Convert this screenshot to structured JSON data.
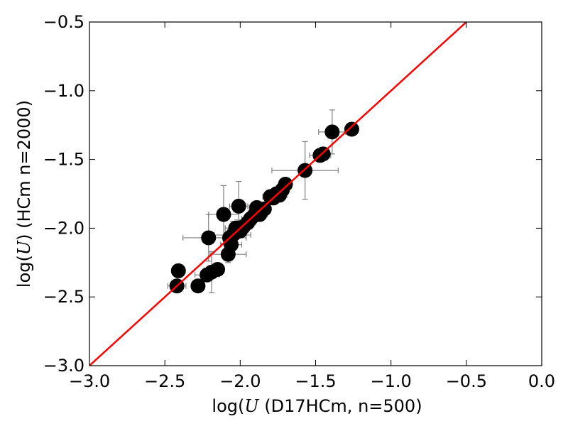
{
  "chart_data": {
    "type": "scatter",
    "title": "",
    "xlabel": "log(U (D17HCm, n=500)",
    "ylabel": "log(U) (HCm n=2000)",
    "xlabel_parts": {
      "prefix": "log(",
      "var": "U",
      "suffix": " (D17HCm, n=500)"
    },
    "ylabel_parts": {
      "prefix": "log(",
      "var": "U",
      "suffix": ") (HCm n=2000)"
    },
    "xlim": [
      -3.0,
      0.0
    ],
    "ylim": [
      -3.0,
      -0.5
    ],
    "xticks": [
      -3.0,
      -2.5,
      -2.0,
      -1.5,
      -1.0,
      -0.5,
      0.0
    ],
    "yticks": [
      -3.0,
      -2.5,
      -2.0,
      -1.5,
      -1.0,
      -0.5
    ],
    "xtick_labels": [
      "−3.0",
      "−2.5",
      "−2.0",
      "−1.5",
      "−1.0",
      "−0.5",
      "0.0"
    ],
    "ytick_labels": [
      "−3.0",
      "−2.5",
      "−2.0",
      "−1.5",
      "−1.0",
      "−0.5"
    ],
    "grid": false,
    "marker_color": "#000000",
    "errorbar_color": "#808080",
    "fit_line": {
      "x": [
        -3.0,
        -0.5
      ],
      "y": [
        -3.0,
        -0.5
      ],
      "color": "#ff0000"
    },
    "series": [
      {
        "points": [
          {
            "x": -2.42,
            "y": -2.42,
            "xerr": 0.06,
            "yerr": 0
          },
          {
            "x": -2.41,
            "y": -2.31,
            "xerr": 0,
            "yerr": 0
          },
          {
            "x": -2.28,
            "y": -2.42,
            "xerr": 0,
            "yerr": 0.04
          },
          {
            "x": -2.21,
            "y": -2.07,
            "xerr": 0.17,
            "yerr": 0.17
          },
          {
            "x": -2.22,
            "y": -2.34,
            "xerr": 0.08,
            "yerr": 0.05
          },
          {
            "x": -2.19,
            "y": -2.32,
            "xerr": 0,
            "yerr": 0.15
          },
          {
            "x": -2.15,
            "y": -2.3,
            "xerr": 0,
            "yerr": 0
          },
          {
            "x": -2.11,
            "y": -1.9,
            "xerr": 0.1,
            "yerr": 0.21
          },
          {
            "x": -2.08,
            "y": -2.19,
            "xerr": 0.12,
            "yerr": 0.06
          },
          {
            "x": -2.07,
            "y": -2.07,
            "xerr": 0.11,
            "yerr": 0.05
          },
          {
            "x": -2.06,
            "y": -2.12,
            "xerr": 0.07,
            "yerr": 0.05
          },
          {
            "x": -2.05,
            "y": -2.05,
            "xerr": 0.12,
            "yerr": 0.1
          },
          {
            "x": -2.04,
            "y": -2.04,
            "xerr": 0.06,
            "yerr": 0.05
          },
          {
            "x": -2.03,
            "y": -2.0,
            "xerr": 0.07,
            "yerr": 0.05
          },
          {
            "x": -2.02,
            "y": -2.0,
            "xerr": 0.08,
            "yerr": 0.06
          },
          {
            "x": -2.01,
            "y": -1.84,
            "xerr": 0.06,
            "yerr": 0.18
          },
          {
            "x": -2.0,
            "y": -2.02,
            "xerr": 0.05,
            "yerr": 0.04
          },
          {
            "x": -1.98,
            "y": -1.99,
            "xerr": 0.05,
            "yerr": 0.04
          },
          {
            "x": -1.95,
            "y": -1.96,
            "xerr": 0.05,
            "yerr": 0.04
          },
          {
            "x": -1.93,
            "y": -1.93,
            "xerr": 0.06,
            "yerr": 0.05
          },
          {
            "x": -1.91,
            "y": -1.91,
            "xerr": 0.05,
            "yerr": 0.04
          },
          {
            "x": -1.89,
            "y": -1.85,
            "xerr": 0.05,
            "yerr": 0.04
          },
          {
            "x": -1.87,
            "y": -1.9,
            "xerr": 0.05,
            "yerr": 0.04
          },
          {
            "x": -1.84,
            "y": -1.86,
            "xerr": 0.04,
            "yerr": 0.04
          },
          {
            "x": -1.8,
            "y": -1.77,
            "xerr": 0.05,
            "yerr": 0.04
          },
          {
            "x": -1.78,
            "y": -1.78,
            "xerr": 0.04,
            "yerr": 0.04
          },
          {
            "x": -1.76,
            "y": -1.75,
            "xerr": 0.04,
            "yerr": 0.04
          },
          {
            "x": -1.74,
            "y": -1.76,
            "xerr": 0.05,
            "yerr": 0.04
          },
          {
            "x": -1.72,
            "y": -1.72,
            "xerr": 0.04,
            "yerr": 0.04
          },
          {
            "x": -1.7,
            "y": -1.68,
            "xerr": 0.04,
            "yerr": 0.04
          },
          {
            "x": -1.57,
            "y": -1.58,
            "xerr": 0.22,
            "yerr": 0.21
          },
          {
            "x": -1.47,
            "y": -1.47,
            "xerr": 0.07,
            "yerr": 0.05
          },
          {
            "x": -1.45,
            "y": -1.46,
            "xerr": 0.04,
            "yerr": 0.04
          },
          {
            "x": -1.39,
            "y": -1.3,
            "xerr": 0.09,
            "yerr": 0.16
          },
          {
            "x": -1.26,
            "y": -1.28,
            "xerr": 0,
            "yerr": 0
          }
        ]
      }
    ]
  }
}
